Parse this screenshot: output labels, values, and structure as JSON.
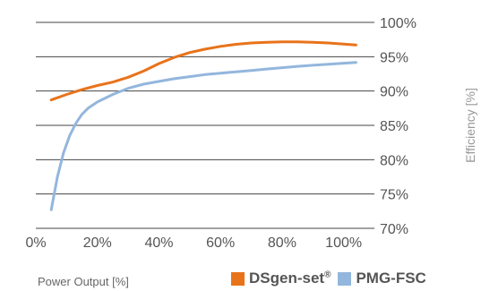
{
  "chart_data": {
    "type": "line",
    "title": "",
    "xlabel": "Power Output [%]",
    "ylabel": "Efficiency [%]",
    "xlim": [
      0,
      110
    ],
    "ylim": [
      70,
      100
    ],
    "x_ticks": [
      "0%",
      "20%",
      "40%",
      "60%",
      "80%",
      "100%"
    ],
    "y_ticks": [
      "70%",
      "75%",
      "80%",
      "85%",
      "90%",
      "95%",
      "100%"
    ],
    "grid": "horizontal",
    "y_axis_position": "right",
    "legend_position": "bottom-right",
    "series": [
      {
        "name": "DSgen-set",
        "name_suffix": "®",
        "color": "#e8731a",
        "x": [
          5,
          10,
          15,
          20,
          25,
          30,
          35,
          40,
          45,
          50,
          55,
          60,
          65,
          70,
          75,
          80,
          85,
          90,
          95,
          100,
          104
        ],
        "y": [
          88.7,
          89.5,
          90.2,
          90.8,
          91.3,
          92.0,
          92.9,
          94.0,
          94.9,
          95.6,
          96.1,
          96.5,
          96.8,
          97.0,
          97.1,
          97.15,
          97.15,
          97.1,
          97.0,
          96.85,
          96.7
        ]
      },
      {
        "name": "PMG-FSC",
        "color": "#93b6dd",
        "x": [
          5,
          7,
          9,
          11,
          13,
          15,
          17,
          20,
          25,
          30,
          35,
          40,
          45,
          50,
          55,
          60,
          65,
          70,
          75,
          80,
          85,
          90,
          95,
          100,
          104
        ],
        "y": [
          72.7,
          77.5,
          81.0,
          83.5,
          85.3,
          86.6,
          87.5,
          88.4,
          89.5,
          90.4,
          91.0,
          91.4,
          91.8,
          92.1,
          92.4,
          92.6,
          92.8,
          93.0,
          93.2,
          93.4,
          93.6,
          93.75,
          93.9,
          94.05,
          94.15
        ]
      }
    ]
  }
}
